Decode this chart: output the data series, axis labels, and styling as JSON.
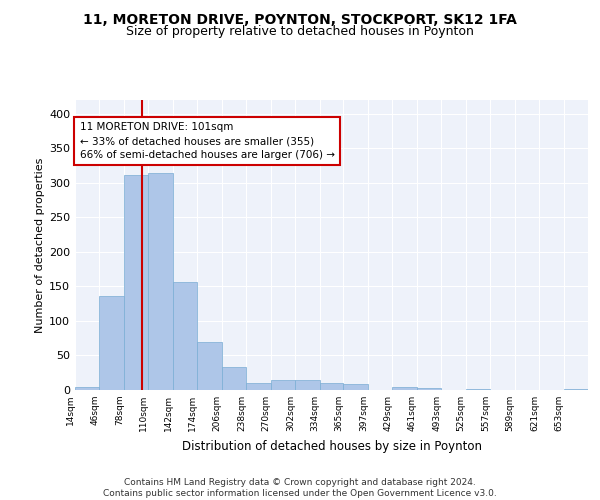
{
  "title1": "11, MORETON DRIVE, POYNTON, STOCKPORT, SK12 1FA",
  "title2": "Size of property relative to detached houses in Poynton",
  "xlabel": "Distribution of detached houses by size in Poynton",
  "ylabel": "Number of detached properties",
  "bin_labels": [
    "14sqm",
    "46sqm",
    "78sqm",
    "110sqm",
    "142sqm",
    "174sqm",
    "206sqm",
    "238sqm",
    "270sqm",
    "302sqm",
    "334sqm",
    "365sqm",
    "397sqm",
    "429sqm",
    "461sqm",
    "493sqm",
    "525sqm",
    "557sqm",
    "589sqm",
    "621sqm",
    "653sqm"
  ],
  "bin_edges": [
    14,
    46,
    78,
    110,
    142,
    174,
    206,
    238,
    270,
    302,
    334,
    365,
    397,
    429,
    461,
    493,
    525,
    557,
    589,
    621,
    653,
    685
  ],
  "bar_heights": [
    4,
    136,
    311,
    315,
    157,
    70,
    33,
    10,
    14,
    14,
    10,
    8,
    0,
    5,
    3,
    0,
    2,
    0,
    0,
    0,
    2
  ],
  "bar_color": "#aec6e8",
  "bar_edgecolor": "#7aadd4",
  "property_size": 101,
  "vline_color": "#cc0000",
  "annotation_text": "11 MORETON DRIVE: 101sqm\n← 33% of detached houses are smaller (355)\n66% of semi-detached houses are larger (706) →",
  "annotation_box_color": "#ffffff",
  "annotation_box_edgecolor": "#cc0000",
  "ylim": [
    0,
    420
  ],
  "yticks": [
    0,
    50,
    100,
    150,
    200,
    250,
    300,
    350,
    400
  ],
  "bg_color": "#eef2fa",
  "footer_text": "Contains HM Land Registry data © Crown copyright and database right 2024.\nContains public sector information licensed under the Open Government Licence v3.0.",
  "grid_color": "#ffffff",
  "title1_fontsize": 10,
  "title2_fontsize": 9
}
